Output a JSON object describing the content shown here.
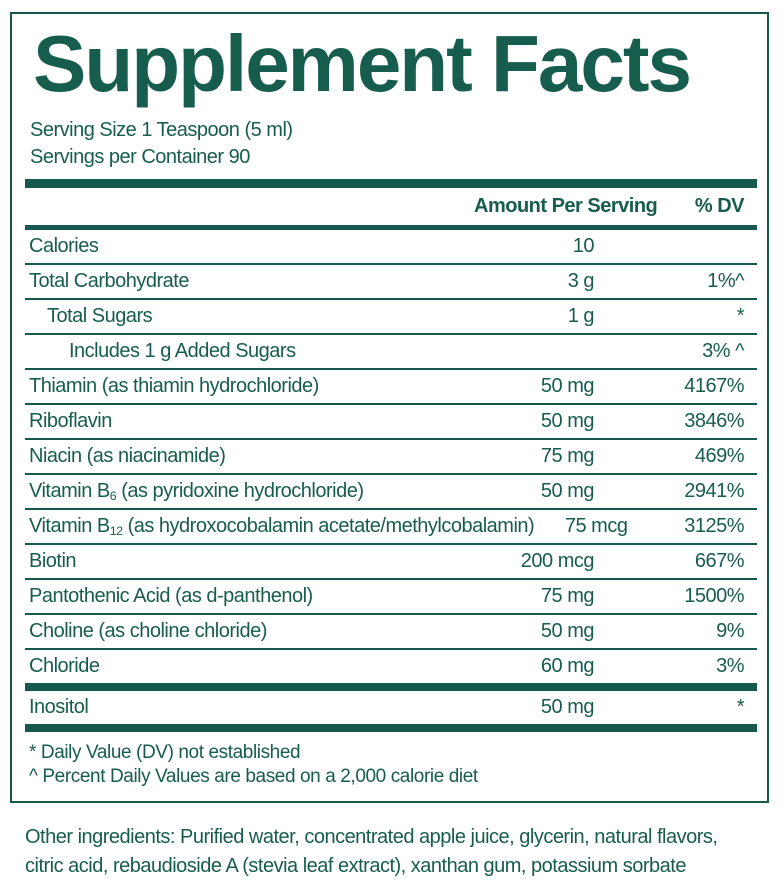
{
  "theme": {
    "accent_color": "#14594b",
    "text_color": "#175d4d",
    "background_color": "#ffffff"
  },
  "label": {
    "title": "Supplement Facts",
    "serving_size": "Serving Size 1 Teaspoon (5 ml)",
    "servings_per_container": "Servings per Container 90",
    "columns": {
      "amount": "Amount Per Serving",
      "dv": "% DV"
    },
    "rows": [
      {
        "name": "Calories",
        "amount": "10",
        "dv": "",
        "indent": 0
      },
      {
        "name": "Total Carbohydrate",
        "amount": "3 g",
        "dv": "1%^",
        "indent": 0
      },
      {
        "name": "Total Sugars",
        "amount": "1 g",
        "dv": "*",
        "indent": 1
      },
      {
        "name": "Includes 1 g Added Sugars",
        "amount": "",
        "dv": "3% ^",
        "indent": 2
      },
      {
        "name": "Thiamin (as thiamin hydrochloride)",
        "amount": "50 mg",
        "dv": "4167%",
        "indent": 0
      },
      {
        "name": "Riboflavin",
        "amount": "50 mg",
        "dv": "3846%",
        "indent": 0
      },
      {
        "name": "Niacin (as niacinamide)",
        "amount": "75 mg",
        "dv": "469%",
        "indent": 0
      },
      {
        "name_parts": [
          {
            "t": "Vitamin B"
          },
          {
            "s": "6"
          },
          {
            "t": " (as pyridoxine hydrochloride)"
          }
        ],
        "amount": "50 mg",
        "dv": "2941%",
        "indent": 0
      },
      {
        "name_parts": [
          {
            "t": "Vitamin B"
          },
          {
            "s": "12"
          },
          {
            "t": " (as hydroxocobalamin acetate/methylcobalamin)"
          }
        ],
        "amount": "75 mcg",
        "dv": "3125%",
        "indent": 0
      },
      {
        "name": "Biotin",
        "amount": "200 mcg",
        "dv": "667%",
        "indent": 0
      },
      {
        "name": "Pantothenic Acid (as d-panthenol)",
        "amount": "75 mg",
        "dv": "1500%",
        "indent": 0
      },
      {
        "name": "Choline (as choline chloride)",
        "amount": "50 mg",
        "dv": "9%",
        "indent": 0
      },
      {
        "name": "Chloride",
        "amount": "60 mg",
        "dv": "3%",
        "indent": 0
      },
      {
        "name": "Inositol",
        "amount": "50 mg",
        "dv": "*",
        "indent": 0,
        "bar_above": true
      }
    ],
    "footnotes": [
      "* Daily Value (DV) not established",
      "^ Percent Daily Values are based on a 2,000 calorie diet"
    ],
    "other_ingredients": "Other ingredients: Purified water, concentrated apple juice, glycerin, natural flavors, citric acid, rebaudioside A (stevia leaf extract), xanthan gum, potassium sorbate"
  }
}
